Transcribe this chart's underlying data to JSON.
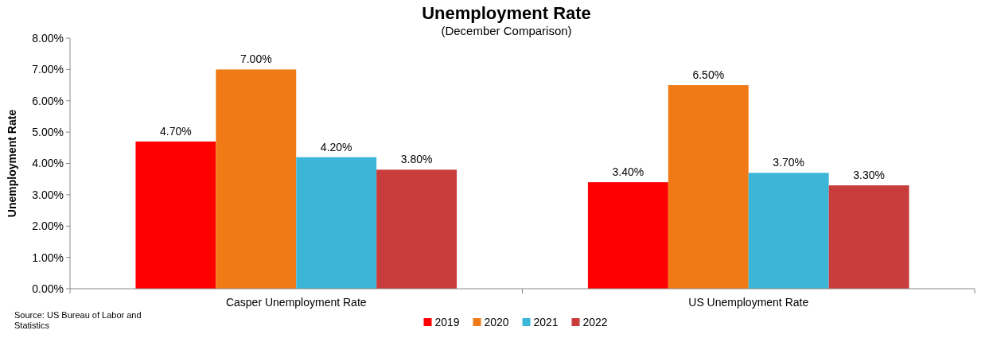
{
  "chart_data": {
    "type": "bar",
    "title": "Unemployment Rate",
    "subtitle": "(December Comparison)",
    "ylabel": "Unemployment Rate",
    "categories": [
      "Casper Unemployment Rate",
      "US Unemployment Rate"
    ],
    "series": [
      {
        "name": "2019",
        "color": "#ff0000",
        "values": [
          4.7,
          3.4
        ],
        "value_labels": [
          "4.70%",
          "3.40%"
        ]
      },
      {
        "name": "2020",
        "color": "#f07b16",
        "values": [
          7.0,
          6.5
        ],
        "value_labels": [
          "7.00%",
          "6.50%"
        ]
      },
      {
        "name": "2021",
        "color": "#3bb6d8",
        "values": [
          4.2,
          3.7
        ],
        "value_labels": [
          "4.20%",
          "3.70%"
        ]
      },
      {
        "name": "2022",
        "color": "#c83c3c",
        "values": [
          3.8,
          3.3
        ],
        "value_labels": [
          "3.80%",
          "3.30%"
        ]
      }
    ],
    "ylim": [
      0,
      8
    ],
    "yticks": [
      {
        "value": 0,
        "label": "0.00%"
      },
      {
        "value": 1,
        "label": "1.00%"
      },
      {
        "value": 2,
        "label": "2.00%"
      },
      {
        "value": 3,
        "label": "3.00%"
      },
      {
        "value": 4,
        "label": "4.00%"
      },
      {
        "value": 5,
        "label": "5.00%"
      },
      {
        "value": 6,
        "label": "6.00%"
      },
      {
        "value": 7,
        "label": "7.00%"
      },
      {
        "value": 8,
        "label": "8.00%"
      }
    ],
    "grid": false,
    "legend": "bottom",
    "annotations": [
      "Source: US Bureau of Labor and Statistics"
    ]
  }
}
